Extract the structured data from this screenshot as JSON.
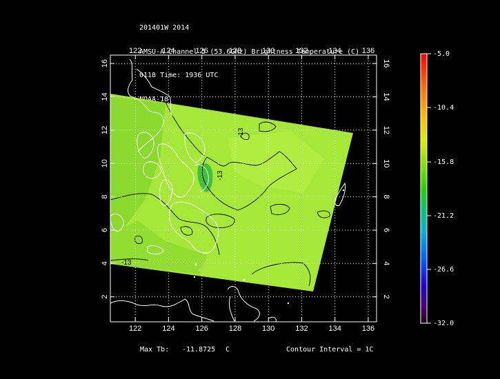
{
  "header": {
    "line1": "201401W 2014",
    "line2": "AMSU-A Channel 5 (53.6GHz) Brightness Temperature (C)",
    "line3": "0118 Time: 1936 UTC",
    "line4": "NOAA-18"
  },
  "axes": {
    "lon_ticks": [
      "122",
      "124",
      "126",
      "128",
      "130",
      "132",
      "134",
      "136"
    ],
    "lat_ticks": [
      "2",
      "4",
      "6",
      "8",
      "10",
      "12",
      "14",
      "16"
    ]
  },
  "colorbar": {
    "labels": [
      "-5.0",
      "-10.4",
      "-15.8",
      "-21.2",
      "-26.6",
      "-32.0"
    ]
  },
  "contours": {
    "labels": [
      "-13",
      "-13",
      "-13"
    ]
  },
  "footer": {
    "max_label": "Max Tb:",
    "max_value": "-11.8725",
    "max_unit": "C",
    "contour_interval": "Contour Interval = 1C"
  },
  "colors": {
    "swath_base": "#a6e838",
    "swath_dark": "#86d82c",
    "contour": "#000000",
    "coast": "#ffffff"
  }
}
